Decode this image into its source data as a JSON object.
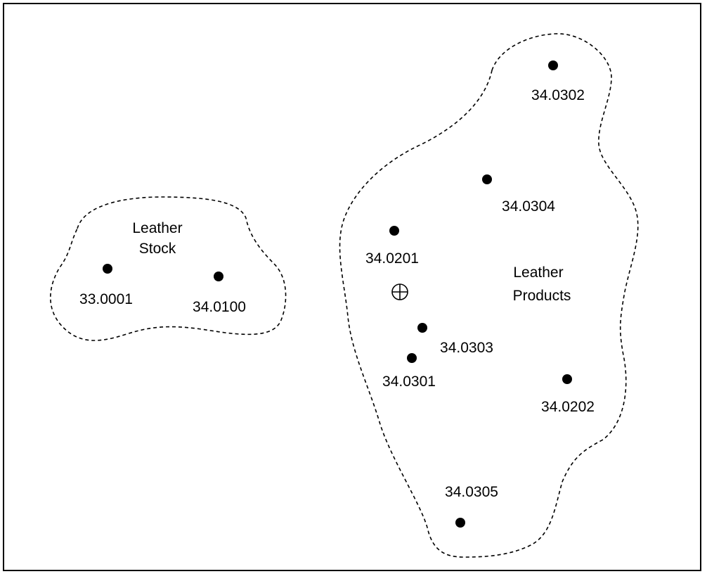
{
  "clusters": [
    {
      "title_lines": [
        "Leather",
        "Stock"
      ],
      "points": [
        "33.0001",
        "34.0100"
      ]
    },
    {
      "title_lines": [
        "Leather",
        "Products"
      ],
      "points": [
        "34.0302",
        "34.0304",
        "34.0201",
        "34.0303",
        "34.0301",
        "34.0202",
        "34.0305"
      ]
    }
  ],
  "centroid_marker": "⊕"
}
